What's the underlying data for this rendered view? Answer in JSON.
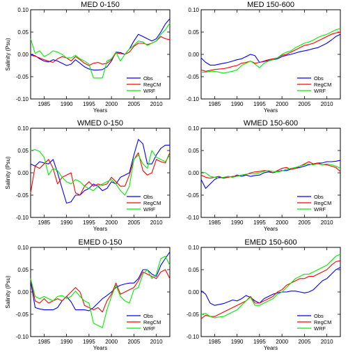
{
  "figure": {
    "colors": {
      "Obs": "#0000ff",
      "RegCM": "#ff0000",
      "WRF": "#00ee00"
    }
  },
  "chart_data": [
    {
      "type": "line",
      "title": "MED 0-150",
      "xlabel": "Years",
      "ylabel": "Salinity (Psu)",
      "xlim": [
        1982,
        2013
      ],
      "ylim": [
        -0.1,
        0.1
      ],
      "x_ticks": [
        "1985",
        "1990",
        "1995",
        "2000",
        "2005",
        "2010"
      ],
      "y_ticks": [
        "-0.10",
        "-0.05",
        "0.00",
        "0.05",
        "0.10"
      ],
      "grid": false,
      "legend": "bottom-right",
      "x": [
        1982,
        1983,
        1984,
        1985,
        1986,
        1987,
        1988,
        1989,
        1990,
        1991,
        1992,
        1993,
        1994,
        1995,
        1996,
        1997,
        1998,
        1999,
        2000,
        2001,
        2002,
        2003,
        2004,
        2005,
        2006,
        2007,
        2008,
        2009,
        2010,
        2011,
        2012,
        2013
      ],
      "series": [
        {
          "name": "Obs",
          "color": "#0000ff",
          "values": [
            0.0,
            -0.003,
            -0.01,
            -0.015,
            -0.017,
            -0.012,
            -0.015,
            -0.02,
            -0.025,
            -0.022,
            -0.012,
            -0.02,
            -0.028,
            -0.033,
            -0.035,
            -0.035,
            -0.034,
            -0.028,
            -0.015,
            0.005,
            0.004,
            0.0,
            0.012,
            0.03,
            0.045,
            0.04,
            0.035,
            0.03,
            0.035,
            0.05,
            0.068,
            0.08
          ]
        },
        {
          "name": "RegCM",
          "color": "#ff0000",
          "values": [
            -0.002,
            -0.004,
            -0.008,
            -0.012,
            -0.015,
            -0.018,
            -0.01,
            -0.005,
            -0.008,
            -0.015,
            -0.005,
            -0.012,
            -0.02,
            -0.025,
            -0.02,
            -0.018,
            -0.022,
            -0.02,
            -0.012,
            0.003,
            0.002,
            0.0,
            0.005,
            0.018,
            0.025,
            0.025,
            0.022,
            0.025,
            0.03,
            0.04,
            0.035,
            0.033
          ]
        },
        {
          "name": "WRF",
          "color": "#00ee00",
          "values": [
            0.035,
            0.002,
            0.008,
            -0.005,
            0.0,
            0.008,
            0.005,
            0.0,
            -0.008,
            -0.008,
            -0.002,
            -0.01,
            -0.015,
            -0.022,
            -0.053,
            -0.053,
            -0.053,
            -0.015,
            -0.01,
            0.005,
            -0.015,
            0.0,
            0.012,
            0.02,
            0.03,
            0.028,
            0.02,
            0.025,
            0.03,
            0.045,
            0.055,
            0.07
          ]
        }
      ]
    },
    {
      "type": "line",
      "title": "MED 150-600",
      "xlabel": "Years",
      "ylabel": "",
      "xlim": [
        1982,
        2013
      ],
      "ylim": [
        -0.1,
        0.1
      ],
      "x_ticks": [
        "1985",
        "1990",
        "1995",
        "2000",
        "2005",
        "2010"
      ],
      "y_ticks": [
        "-0.10",
        "-0.05",
        "0.00",
        "0.05",
        "0.10"
      ],
      "grid": false,
      "legend": "bottom-right",
      "x": [
        1982,
        1983,
        1984,
        1985,
        1986,
        1987,
        1988,
        1989,
        1990,
        1991,
        1992,
        1993,
        1994,
        1995,
        1996,
        1997,
        1998,
        1999,
        2000,
        2001,
        2002,
        2003,
        2004,
        2005,
        2006,
        2007,
        2008,
        2009,
        2010,
        2011,
        2012,
        2013
      ],
      "series": [
        {
          "name": "Obs",
          "color": "#0000ff",
          "values": [
            -0.008,
            -0.018,
            -0.024,
            -0.024,
            -0.022,
            -0.02,
            -0.018,
            -0.015,
            -0.012,
            -0.01,
            -0.005,
            0.0,
            -0.003,
            -0.018,
            -0.016,
            -0.014,
            -0.012,
            -0.01,
            -0.005,
            -0.002,
            0.0,
            0.003,
            0.006,
            0.008,
            0.01,
            0.013,
            0.015,
            0.02,
            0.025,
            0.032,
            0.04,
            0.045
          ]
        },
        {
          "name": "RegCM",
          "color": "#ff0000",
          "values": [
            -0.035,
            -0.038,
            -0.036,
            -0.034,
            -0.033,
            -0.032,
            -0.03,
            -0.027,
            -0.025,
            -0.02,
            -0.018,
            -0.015,
            -0.02,
            -0.018,
            -0.015,
            -0.012,
            -0.01,
            -0.008,
            -0.002,
            0.0,
            0.005,
            0.01,
            0.015,
            0.02,
            0.022,
            0.025,
            0.03,
            0.035,
            0.04,
            0.045,
            0.048,
            0.05
          ]
        },
        {
          "name": "WRF",
          "color": "#00ee00",
          "values": [
            -0.04,
            -0.04,
            -0.038,
            -0.038,
            -0.04,
            -0.042,
            -0.04,
            -0.038,
            -0.035,
            -0.025,
            -0.02,
            -0.015,
            -0.022,
            -0.03,
            -0.02,
            -0.015,
            -0.012,
            -0.008,
            0.0,
            0.005,
            0.008,
            0.015,
            0.02,
            0.025,
            0.028,
            0.032,
            0.038,
            0.042,
            0.045,
            0.05,
            0.055,
            0.058
          ]
        }
      ]
    },
    {
      "type": "line",
      "title": "WMED 0-150",
      "xlabel": "Years",
      "ylabel": "Salinity (Psu)",
      "xlim": [
        1982,
        2013
      ],
      "ylim": [
        -0.1,
        0.1
      ],
      "x_ticks": [
        "1985",
        "1990",
        "1995",
        "2000",
        "2005",
        "2010"
      ],
      "y_ticks": [
        "-0.10",
        "-0.05",
        "0.00",
        "0.05",
        "0.10"
      ],
      "grid": false,
      "legend": "bottom-right",
      "x": [
        1982,
        1983,
        1984,
        1985,
        1986,
        1987,
        1988,
        1989,
        1990,
        1991,
        1992,
        1993,
        1994,
        1995,
        1996,
        1997,
        1998,
        1999,
        2000,
        2001,
        2002,
        2003,
        2004,
        2005,
        2006,
        2007,
        2008,
        2009,
        2010,
        2011,
        2012,
        2013
      ],
      "series": [
        {
          "name": "Obs",
          "color": "#0000ff",
          "values": [
            0.02,
            0.015,
            0.025,
            0.022,
            0.02,
            0.03,
            0.0,
            -0.035,
            -0.068,
            -0.065,
            -0.05,
            -0.05,
            -0.04,
            -0.035,
            -0.025,
            -0.03,
            -0.04,
            -0.035,
            -0.02,
            -0.025,
            -0.01,
            -0.005,
            0.0,
            0.04,
            0.075,
            0.065,
            0.02,
            0.02,
            0.04,
            0.055,
            0.062,
            0.062
          ]
        },
        {
          "name": "RegCM",
          "color": "#ff0000",
          "values": [
            -0.045,
            0.015,
            0.01,
            0.02,
            0.03,
            0.01,
            -0.025,
            -0.01,
            -0.005,
            0.0,
            -0.045,
            -0.05,
            -0.03,
            -0.02,
            -0.03,
            -0.025,
            -0.028,
            -0.025,
            -0.01,
            -0.02,
            -0.03,
            -0.03,
            -0.005,
            0.03,
            0.045,
            0.005,
            -0.005,
            0.0,
            0.03,
            0.025,
            0.022,
            0.045
          ]
        },
        {
          "name": "WRF",
          "color": "#00ee00",
          "values": [
            0.05,
            0.052,
            0.048,
            0.035,
            -0.005,
            0.01,
            0.005,
            -0.01,
            -0.02,
            -0.025,
            -0.015,
            -0.02,
            -0.03,
            -0.035,
            -0.04,
            -0.03,
            -0.025,
            -0.02,
            -0.015,
            -0.025,
            -0.04,
            -0.05,
            -0.03,
            0.03,
            0.04,
            0.02,
            0.01,
            0.05,
            0.035,
            0.03,
            0.025,
            0.04
          ]
        }
      ]
    },
    {
      "type": "line",
      "title": "WMED 150-600",
      "xlabel": "Years",
      "ylabel": "",
      "xlim": [
        1982,
        2013
      ],
      "ylim": [
        -0.1,
        0.1
      ],
      "x_ticks": [
        "1985",
        "1990",
        "1995",
        "2000",
        "2005",
        "2010"
      ],
      "y_ticks": [
        "-0.10",
        "-0.05",
        "0.00",
        "0.05",
        "0.10"
      ],
      "grid": false,
      "legend": "bottom-right",
      "x": [
        1982,
        1983,
        1984,
        1985,
        1986,
        1987,
        1988,
        1989,
        1990,
        1991,
        1992,
        1993,
        1994,
        1995,
        1996,
        1997,
        1998,
        1999,
        2000,
        2001,
        2002,
        2003,
        2004,
        2005,
        2006,
        2007,
        2008,
        2009,
        2010,
        2011,
        2012,
        2013
      ],
      "series": [
        {
          "name": "Obs",
          "color": "#0000ff",
          "values": [
            -0.015,
            -0.035,
            -0.025,
            -0.015,
            -0.01,
            -0.012,
            -0.008,
            -0.01,
            -0.005,
            -0.008,
            -0.005,
            -0.008,
            -0.006,
            -0.005,
            0.0,
            0.002,
            0.0,
            0.003,
            0.005,
            0.005,
            0.008,
            0.01,
            0.012,
            0.015,
            0.018,
            0.02,
            0.022,
            0.022,
            0.025,
            0.025,
            0.026,
            0.028
          ]
        },
        {
          "name": "RegCM",
          "color": "#ff0000",
          "values": [
            -0.005,
            -0.01,
            -0.012,
            -0.01,
            -0.008,
            -0.012,
            -0.01,
            -0.008,
            -0.008,
            -0.005,
            -0.004,
            0.0,
            0.002,
            0.003,
            0.005,
            0.004,
            0.0,
            0.005,
            0.01,
            0.012,
            0.008,
            0.01,
            0.015,
            0.02,
            0.025,
            0.02,
            0.022,
            0.018,
            0.018,
            0.015,
            0.012,
            0.003
          ]
        },
        {
          "name": "WRF",
          "color": "#00ee00",
          "values": [
            0.002,
            0.0,
            -0.008,
            -0.01,
            -0.012,
            -0.01,
            -0.008,
            -0.01,
            -0.008,
            -0.005,
            -0.003,
            -0.002,
            -0.002,
            0.0,
            0.003,
            0.005,
            0.003,
            0.002,
            0.004,
            0.008,
            0.01,
            0.012,
            0.015,
            0.018,
            0.02,
            0.018,
            0.02,
            0.018,
            0.02,
            0.018,
            0.015,
            0.01
          ]
        }
      ]
    },
    {
      "type": "line",
      "title": "EMED 0-150",
      "xlabel": "Years",
      "ylabel": "Salinity (Psu)",
      "xlim": [
        1982,
        2013
      ],
      "ylim": [
        -0.1,
        0.1
      ],
      "x_ticks": [
        "1985",
        "1990",
        "1995",
        "2000",
        "2005",
        "2010"
      ],
      "y_ticks": [
        "-0.10",
        "-0.05",
        "0.00",
        "0.05",
        "0.10"
      ],
      "grid": false,
      "legend": "bottom-right",
      "x": [
        1982,
        1983,
        1984,
        1985,
        1986,
        1987,
        1988,
        1989,
        1990,
        1991,
        1992,
        1993,
        1994,
        1995,
        1996,
        1997,
        1998,
        1999,
        2000,
        2001,
        2002,
        2003,
        2004,
        2005,
        2006,
        2007,
        2008,
        2009,
        2010,
        2011,
        2012,
        2013
      ],
      "series": [
        {
          "name": "Obs",
          "color": "#0000ff",
          "values": [
            0.025,
            -0.035,
            -0.038,
            -0.04,
            -0.04,
            -0.04,
            -0.035,
            -0.02,
            -0.01,
            -0.022,
            -0.04,
            -0.04,
            -0.04,
            -0.042,
            -0.035,
            -0.025,
            -0.015,
            -0.008,
            0.0,
            0.01,
            0.015,
            0.018,
            0.02,
            0.02,
            0.03,
            0.05,
            0.05,
            0.04,
            0.035,
            0.06,
            0.075,
            0.09
          ]
        },
        {
          "name": "RegCM",
          "color": "#ff0000",
          "values": [
            0.03,
            -0.02,
            -0.025,
            -0.015,
            -0.025,
            -0.02,
            -0.015,
            -0.02,
            -0.01,
            0.0,
            0.01,
            0.0,
            -0.03,
            -0.035,
            -0.04,
            -0.035,
            -0.045,
            -0.02,
            -0.005,
            0.02,
            -0.005,
            0.0,
            0.005,
            0.01,
            0.025,
            0.045,
            0.04,
            0.035,
            0.03,
            0.045,
            0.05,
            0.03
          ]
        },
        {
          "name": "WRF",
          "color": "#00ee00",
          "values": [
            0.03,
            -0.01,
            -0.015,
            -0.01,
            -0.015,
            -0.02,
            -0.01,
            -0.008,
            -0.015,
            -0.01,
            0.002,
            -0.01,
            -0.02,
            -0.025,
            -0.07,
            -0.075,
            -0.08,
            -0.04,
            -0.01,
            0.015,
            -0.01,
            -0.02,
            -0.025,
            0.005,
            0.01,
            0.04,
            0.05,
            0.03,
            0.04,
            0.075,
            0.08,
            0.06
          ]
        }
      ]
    },
    {
      "type": "line",
      "title": "EMED 150-600",
      "xlabel": "Years",
      "ylabel": "",
      "xlim": [
        1982,
        2013
      ],
      "ylim": [
        -0.1,
        0.1
      ],
      "x_ticks": [
        "1985",
        "1990",
        "1995",
        "2000",
        "2005",
        "2010"
      ],
      "y_ticks": [
        "-0.10",
        "-0.05",
        "0.00",
        "0.05",
        "0.10"
      ],
      "grid": false,
      "legend": "bottom-right",
      "x": [
        1982,
        1983,
        1984,
        1985,
        1986,
        1987,
        1988,
        1989,
        1990,
        1991,
        1992,
        1993,
        1994,
        1995,
        1996,
        1997,
        1998,
        1999,
        2000,
        2001,
        2002,
        2003,
        2004,
        2005,
        2006,
        2007,
        2008,
        2009,
        2010,
        2011,
        2012,
        2013
      ],
      "series": [
        {
          "name": "Obs",
          "color": "#0000ff",
          "values": [
            0.003,
            -0.005,
            -0.025,
            -0.03,
            -0.028,
            -0.026,
            -0.022,
            -0.018,
            -0.02,
            -0.015,
            -0.008,
            -0.012,
            -0.02,
            -0.025,
            -0.015,
            -0.01,
            -0.005,
            -0.002,
            0.0,
            0.0,
            0.002,
            0.002,
            0.0,
            -0.002,
            0.0,
            0.005,
            0.015,
            0.025,
            0.03,
            0.04,
            0.05,
            0.055
          ]
        },
        {
          "name": "RegCM",
          "color": "#ff0000",
          "values": [
            -0.06,
            -0.052,
            -0.055,
            -0.055,
            -0.05,
            -0.045,
            -0.04,
            -0.035,
            -0.03,
            -0.025,
            -0.02,
            -0.01,
            -0.025,
            -0.025,
            -0.02,
            -0.015,
            -0.01,
            0.0,
            0.005,
            0.015,
            0.02,
            0.025,
            0.03,
            0.03,
            0.035,
            0.035,
            0.04,
            0.045,
            0.05,
            0.06,
            0.068,
            0.07
          ]
        },
        {
          "name": "WRF",
          "color": "#00ee00",
          "values": [
            -0.05,
            -0.048,
            -0.055,
            -0.058,
            -0.056,
            -0.055,
            -0.05,
            -0.045,
            -0.04,
            -0.03,
            -0.02,
            -0.012,
            -0.03,
            -0.03,
            -0.025,
            -0.02,
            -0.015,
            -0.005,
            0.0,
            0.01,
            0.02,
            0.03,
            0.035,
            0.04,
            0.04,
            0.045,
            0.05,
            0.055,
            0.06,
            0.07,
            0.08,
            0.085
          ]
        }
      ]
    }
  ]
}
